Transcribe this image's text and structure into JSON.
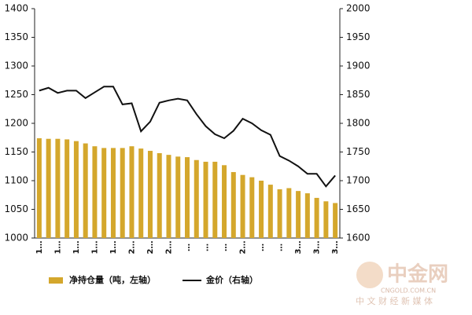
{
  "chart_data": {
    "type": "bar_line",
    "categories": [
      "1…",
      null,
      "1…",
      null,
      "1…",
      null,
      "1…",
      null,
      "1…",
      null,
      "2…",
      null,
      "2…",
      null,
      "2…",
      null,
      "…",
      null,
      "…",
      null,
      "…",
      null,
      "2…",
      null,
      "…",
      null,
      "…",
      null,
      "3…",
      null,
      "3…",
      null,
      "3…"
    ],
    "series": [
      {
        "name": "净持仓量（吨，左轴）",
        "color": "#d4a72c",
        "axis": "y",
        "values": [
          1174,
          1173,
          1173,
          1172,
          1169,
          1165,
          1160,
          1157,
          1157,
          1157,
          1160,
          1156,
          1152,
          1148,
          1145,
          1142,
          1141,
          1136,
          1133,
          1133,
          1127,
          1115,
          1110,
          1106,
          1100,
          1093,
          1085,
          1087,
          1082,
          1078,
          1070,
          1064,
          1061
        ]
      },
      {
        "name": "金价（右轴）",
        "color": "#111111",
        "axis": "y2",
        "values": [
          1857,
          1862,
          1853,
          1857,
          1857,
          1844,
          1854,
          1864,
          1864,
          1833,
          1835,
          1786,
          1803,
          1836,
          1840,
          1843,
          1840,
          1816,
          1795,
          1781,
          1774,
          1787,
          1808,
          1800,
          1788,
          1780,
          1743,
          1735,
          1725,
          1712,
          1712,
          1690,
          1709
        ]
      }
    ],
    "ylim": [
      1000,
      1400
    ],
    "yticks": [
      1000,
      1050,
      1100,
      1150,
      1200,
      1250,
      1300,
      1350,
      1400
    ],
    "y2lim": [
      1600,
      2000
    ],
    "y2ticks": [
      1600,
      1650,
      1700,
      1750,
      1800,
      1850,
      1900,
      1950,
      2000
    ],
    "grid": false
  },
  "watermark": {
    "name": "中金网",
    "url": "CNGOLD.COM.CN",
    "slogan": "中 文 财 经 新 媒 体"
  }
}
